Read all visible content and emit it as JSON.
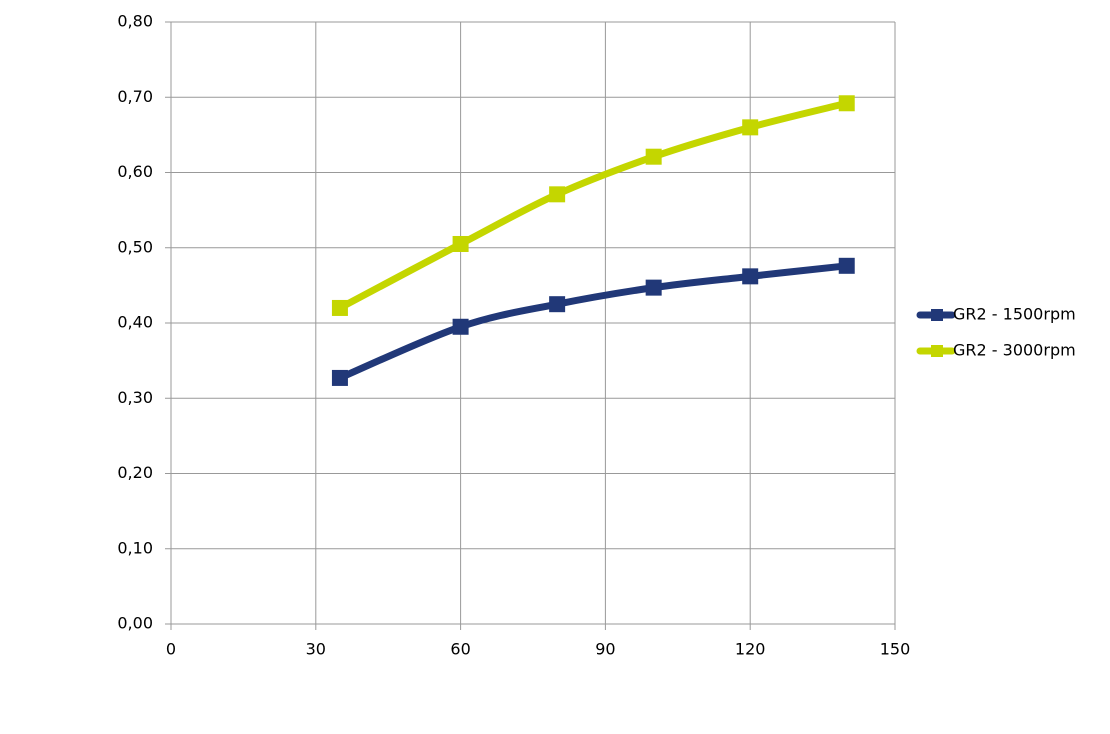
{
  "chart_data": {
    "type": "line",
    "x": [
      35,
      60,
      80,
      100,
      120,
      140
    ],
    "series": [
      {
        "name": "GR2 - 1500rpm",
        "color": "#213878",
        "values": [
          0.327,
          0.395,
          0.425,
          0.447,
          0.462,
          0.476
        ]
      },
      {
        "name": "GR2 - 3000rpm",
        "color": "#c4d600",
        "values": [
          0.42,
          0.505,
          0.571,
          0.621,
          0.66,
          0.692
        ]
      }
    ],
    "xlim": [
      0,
      150
    ],
    "xticks": [
      0,
      30,
      60,
      90,
      120,
      150
    ],
    "ylim": [
      0,
      0.8
    ],
    "yticks": [
      {
        "value": 0,
        "label": "0,00"
      },
      {
        "value": 0.1,
        "label": "0,10"
      },
      {
        "value": 0.2,
        "label": "0,20"
      },
      {
        "value": 0.3,
        "label": "0,30"
      },
      {
        "value": 0.4,
        "label": "0,40"
      },
      {
        "value": 0.5,
        "label": "0,50"
      },
      {
        "value": 0.6,
        "label": "0,60"
      },
      {
        "value": 0.7,
        "label": "0,70"
      },
      {
        "value": 0.8,
        "label": "0,80"
      }
    ],
    "grid": true,
    "smooth": true,
    "legend": "right"
  }
}
